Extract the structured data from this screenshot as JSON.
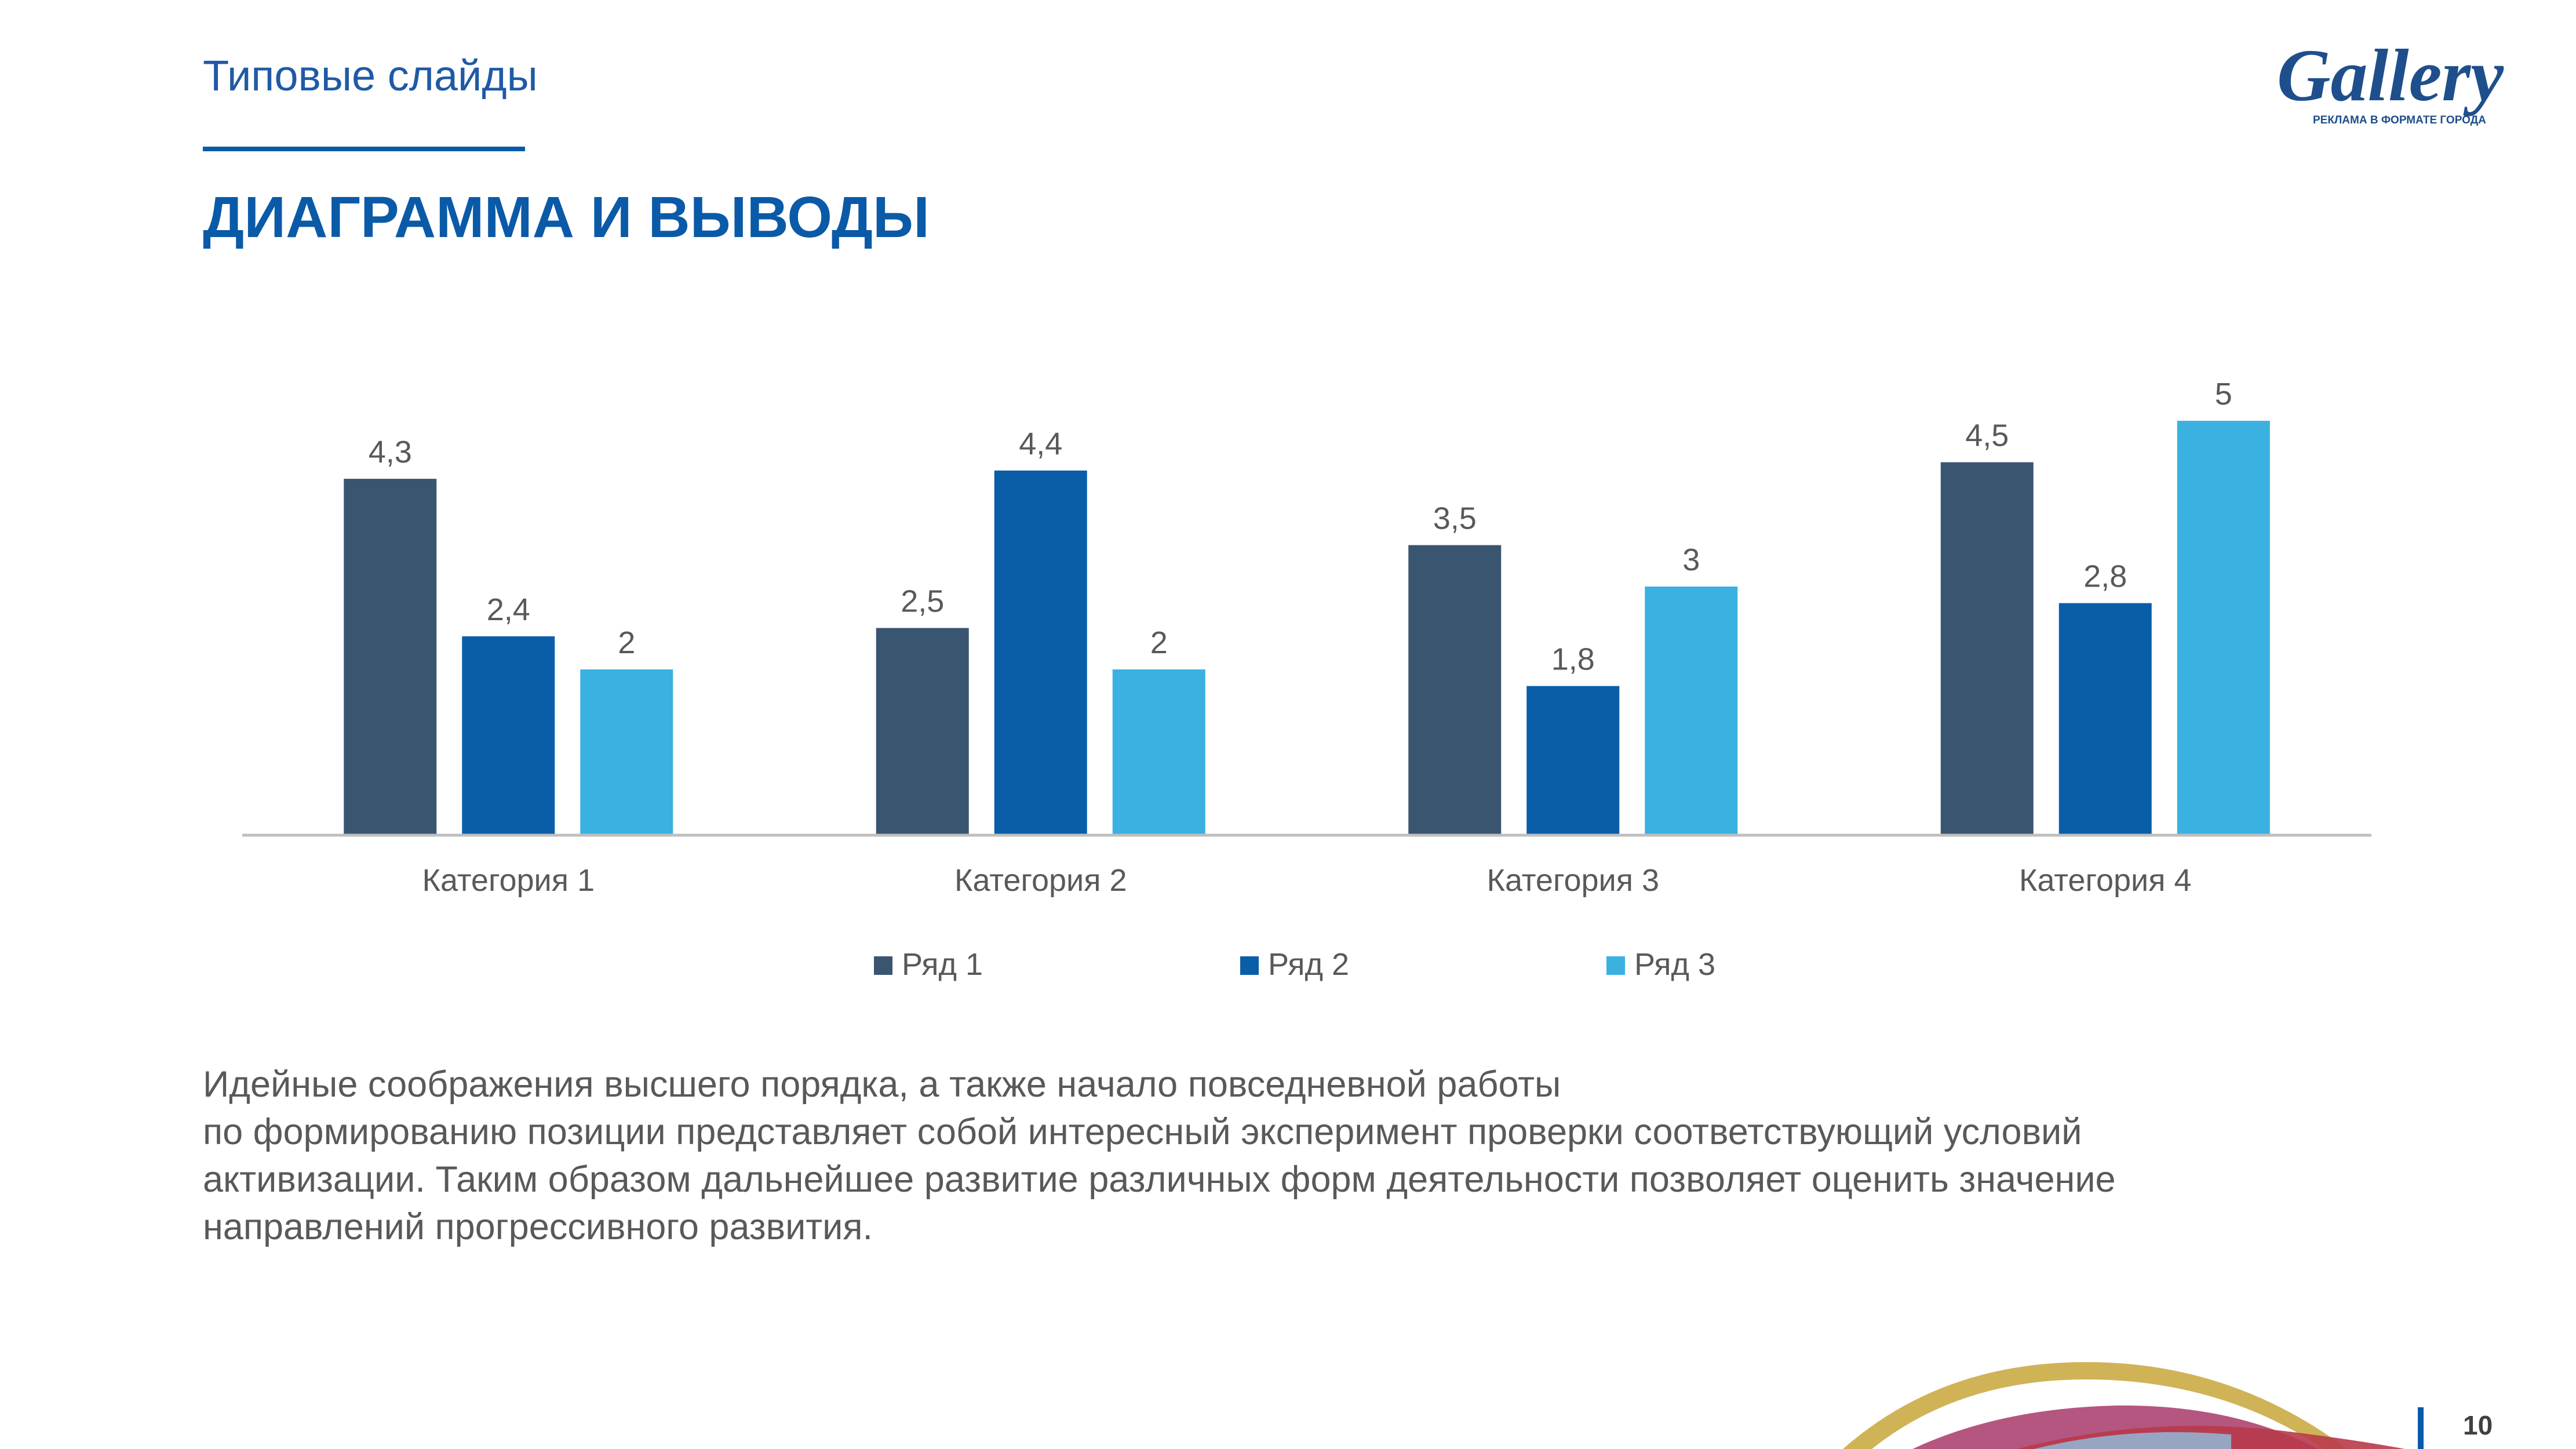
{
  "header": {
    "section_label": "Типовые слайды",
    "title": "ДИАГРАММА И ВЫВОДЫ",
    "logo_text": "Gallery",
    "logo_tagline": "РЕКЛАМА В ФОРМАТЕ ГОРОДА"
  },
  "colors": {
    "series1": "#3a5570",
    "series2": "#0a5ea8",
    "series3": "#3ab1e0",
    "brand": "#0a5aa8"
  },
  "chart_data": {
    "type": "bar",
    "categories": [
      "Категория 1",
      "Категория 2",
      "Категория 3",
      "Категория 4"
    ],
    "series": [
      {
        "name": "Ряд 1",
        "values": [
          4.3,
          2.5,
          3.5,
          4.5
        ],
        "labels": [
          "4,3",
          "2,5",
          "3,5",
          "4,5"
        ]
      },
      {
        "name": "Ряд 2",
        "values": [
          2.4,
          4.4,
          1.8,
          2.8
        ],
        "labels": [
          "2,4",
          "4,4",
          "1,8",
          "2,8"
        ]
      },
      {
        "name": "Ряд 3",
        "values": [
          2,
          2,
          3,
          5
        ],
        "labels": [
          "2",
          "2",
          "3",
          "5"
        ]
      }
    ],
    "ylim": [
      0,
      5
    ],
    "grid": false,
    "legend": "bottom"
  },
  "body": {
    "lines": [
      "Идейные соображения высшего порядка, а также начало повседневной работы",
      "по формированию позиции представляет собой интересный эксперимент проверки соответствующий условий",
      "активизации. Таким образом дальнейшее развитие различных форм деятельности позволяет оценить значение",
      "направлений прогрессивного развития."
    ]
  },
  "footer": {
    "page_number": "10"
  }
}
